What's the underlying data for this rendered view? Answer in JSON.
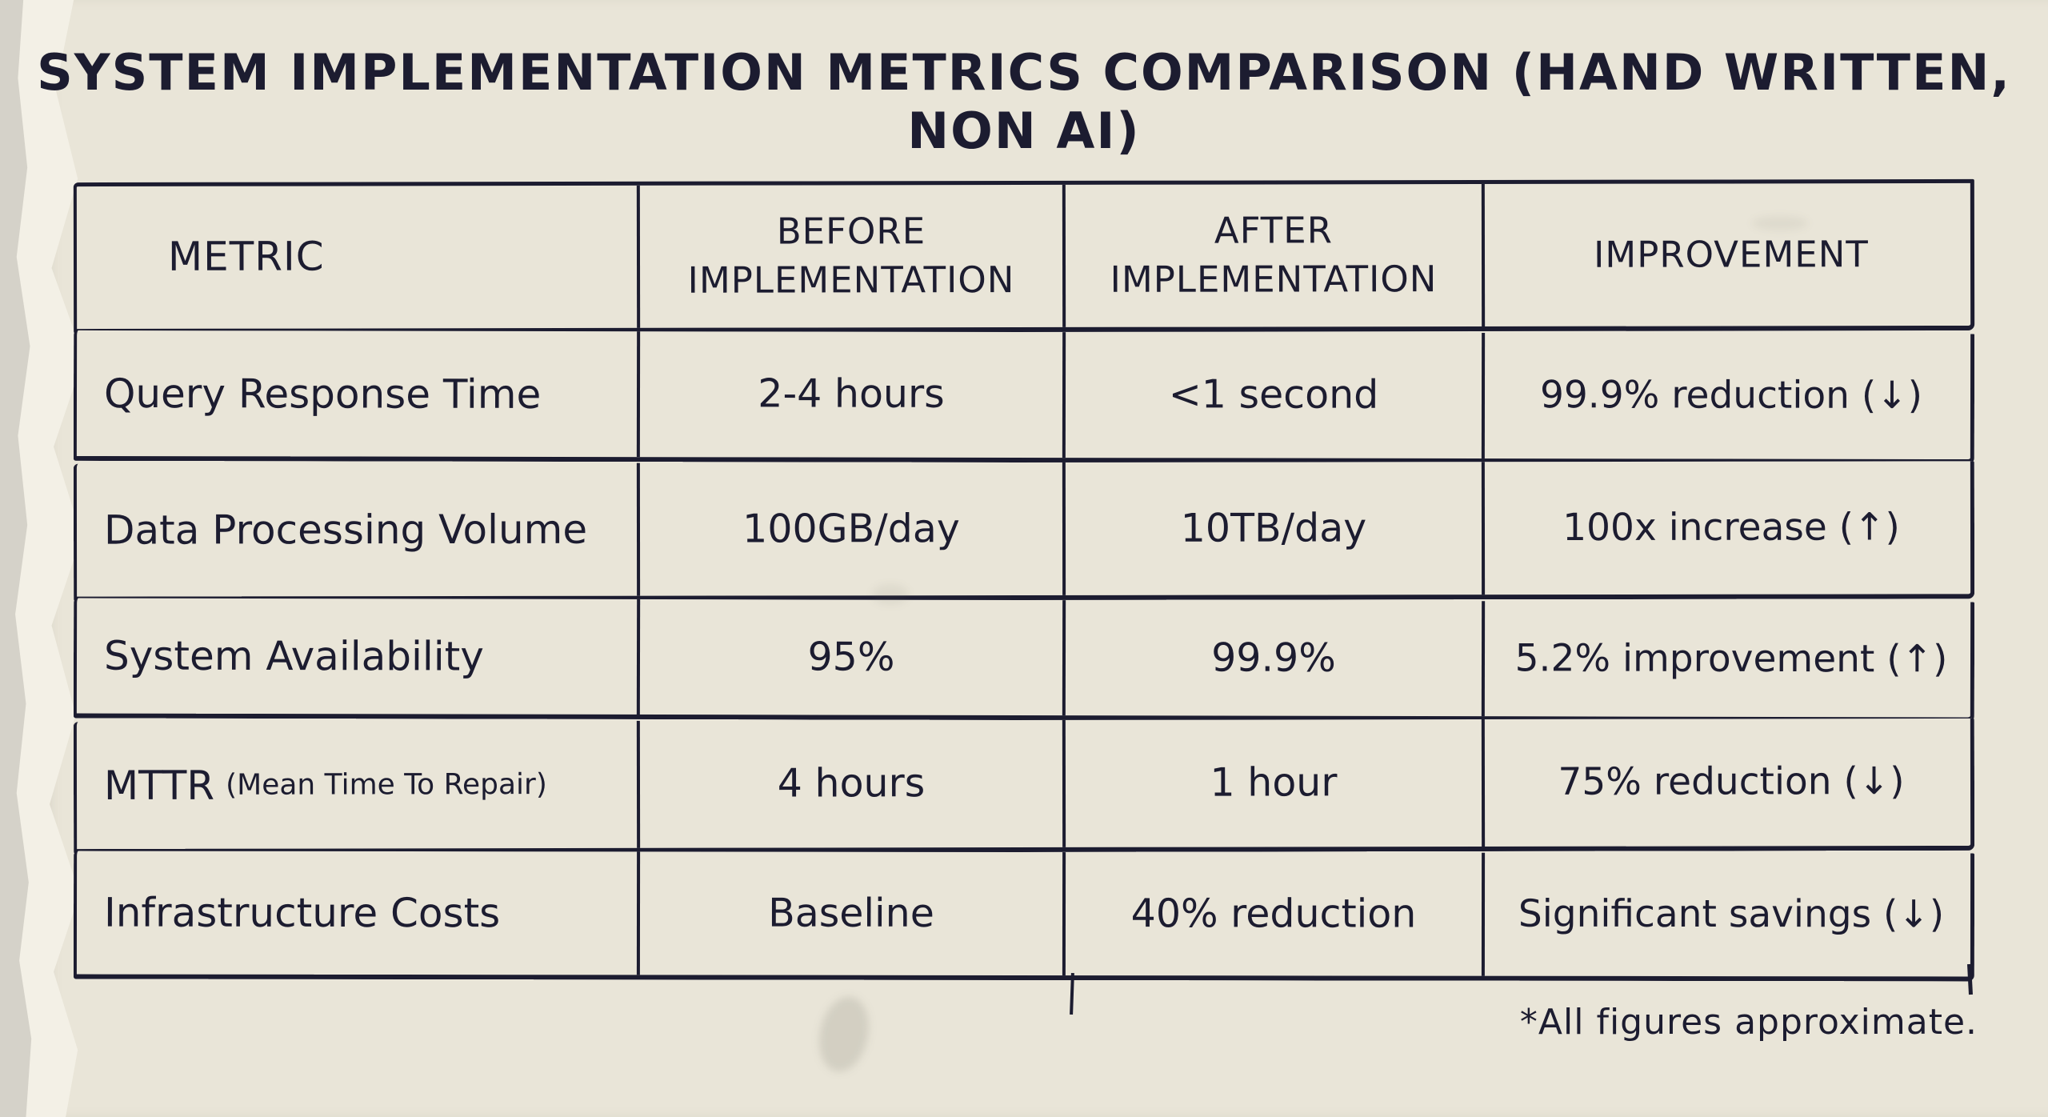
{
  "colors": {
    "ink": "#1c1c30",
    "paper": "#e9e5d8",
    "wall": "#d5d2c9",
    "torn": "#f3f0e6"
  },
  "page": {
    "title": "SYSTEM IMPLEMENTATION METRICS COMPARISON (HAND WRITTEN, NON AI)",
    "footnote": "*All figures approximate."
  },
  "table": {
    "columns": [
      {
        "line1": "METRIC",
        "line2": ""
      },
      {
        "line1": "BEFORE",
        "line2": "IMPLEMENTATION"
      },
      {
        "line1": "AFTER",
        "line2": "IMPLEMENTATION"
      },
      {
        "line1": "IMPROVEMENT",
        "line2": ""
      }
    ],
    "rows": [
      {
        "metric": "Query Response Time",
        "note": "",
        "before": "2-4 hours",
        "after": "<1 second",
        "improvement": "99.9% reduction (↓)"
      },
      {
        "metric": "Data Processing Volume",
        "note": "",
        "before": "100GB/day",
        "after": "10TB/day",
        "improvement": "100x increase (↑)"
      },
      {
        "metric": "System Availability",
        "note": "",
        "before": "95%",
        "after": "99.9%",
        "improvement": "5.2% improvement (↑)"
      },
      {
        "metric": "MTTR",
        "note": "(Mean Time To Repair)",
        "before": "4 hours",
        "after": "1 hour",
        "improvement": "75% reduction (↓)"
      },
      {
        "metric": "Infrastructure Costs",
        "note": "",
        "before": "Baseline",
        "after": "40% reduction",
        "improvement": "Significant savings (↓)"
      }
    ]
  }
}
